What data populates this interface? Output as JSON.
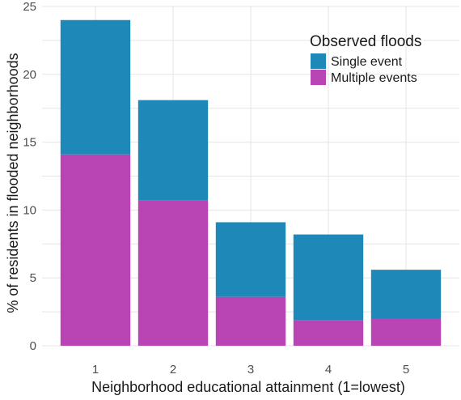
{
  "chart_data": {
    "type": "bar",
    "stacked": true,
    "categories": [
      "1",
      "2",
      "3",
      "4",
      "5"
    ],
    "series": [
      {
        "name": "Multiple events",
        "values": [
          14.1,
          10.7,
          3.6,
          1.9,
          2.0
        ],
        "color": "#B845B3"
      },
      {
        "name": "Single event",
        "values": [
          9.9,
          7.4,
          5.5,
          6.3,
          3.6
        ],
        "color": "#1E88B8"
      }
    ],
    "xlabel": "Neighborhood educational attainment (1=lowest)",
    "ylabel": "% of residents in flooded neighborhoods",
    "ylim": [
      0,
      25
    ],
    "yticks": [
      0,
      5,
      10,
      15,
      20,
      25
    ],
    "grid": true,
    "legend": {
      "title": "Observed floods",
      "placement": "top-right",
      "entries": [
        "Single event",
        "Multiple events"
      ]
    }
  }
}
